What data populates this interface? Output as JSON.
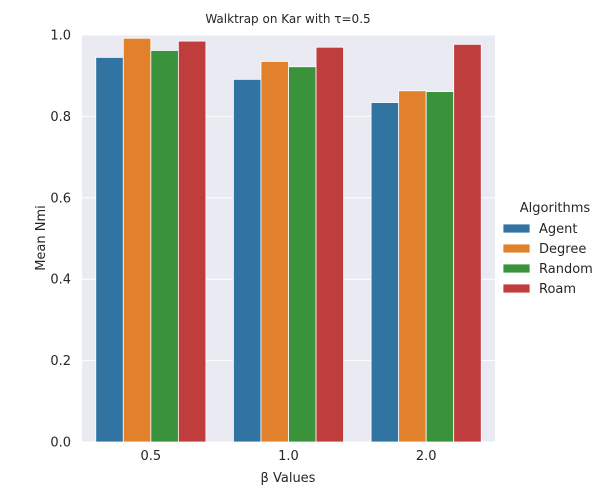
{
  "chart_data": {
    "type": "bar",
    "title": "Walktrap on Kar with τ=0.5",
    "xlabel": "β Values",
    "ylabel": "Mean Nmi",
    "categories": [
      "0.5",
      "1.0",
      "2.0"
    ],
    "ylim": [
      0,
      1.0
    ],
    "yticks": [
      "0.0",
      "0.2",
      "0.4",
      "0.6",
      "0.8",
      "1.0"
    ],
    "grid": true,
    "legend_title": "Algorithms",
    "legend_position": "right",
    "series": [
      {
        "name": "Agent",
        "color": "#3274a1",
        "values": [
          0.945,
          0.891,
          0.834
        ]
      },
      {
        "name": "Degree",
        "color": "#e1812c",
        "values": [
          0.992,
          0.935,
          0.863
        ]
      },
      {
        "name": "Random",
        "color": "#3a923a",
        "values": [
          0.962,
          0.922,
          0.861
        ]
      },
      {
        "name": "Roam",
        "color": "#c03d3e",
        "values": [
          0.985,
          0.97,
          0.977
        ]
      }
    ]
  }
}
